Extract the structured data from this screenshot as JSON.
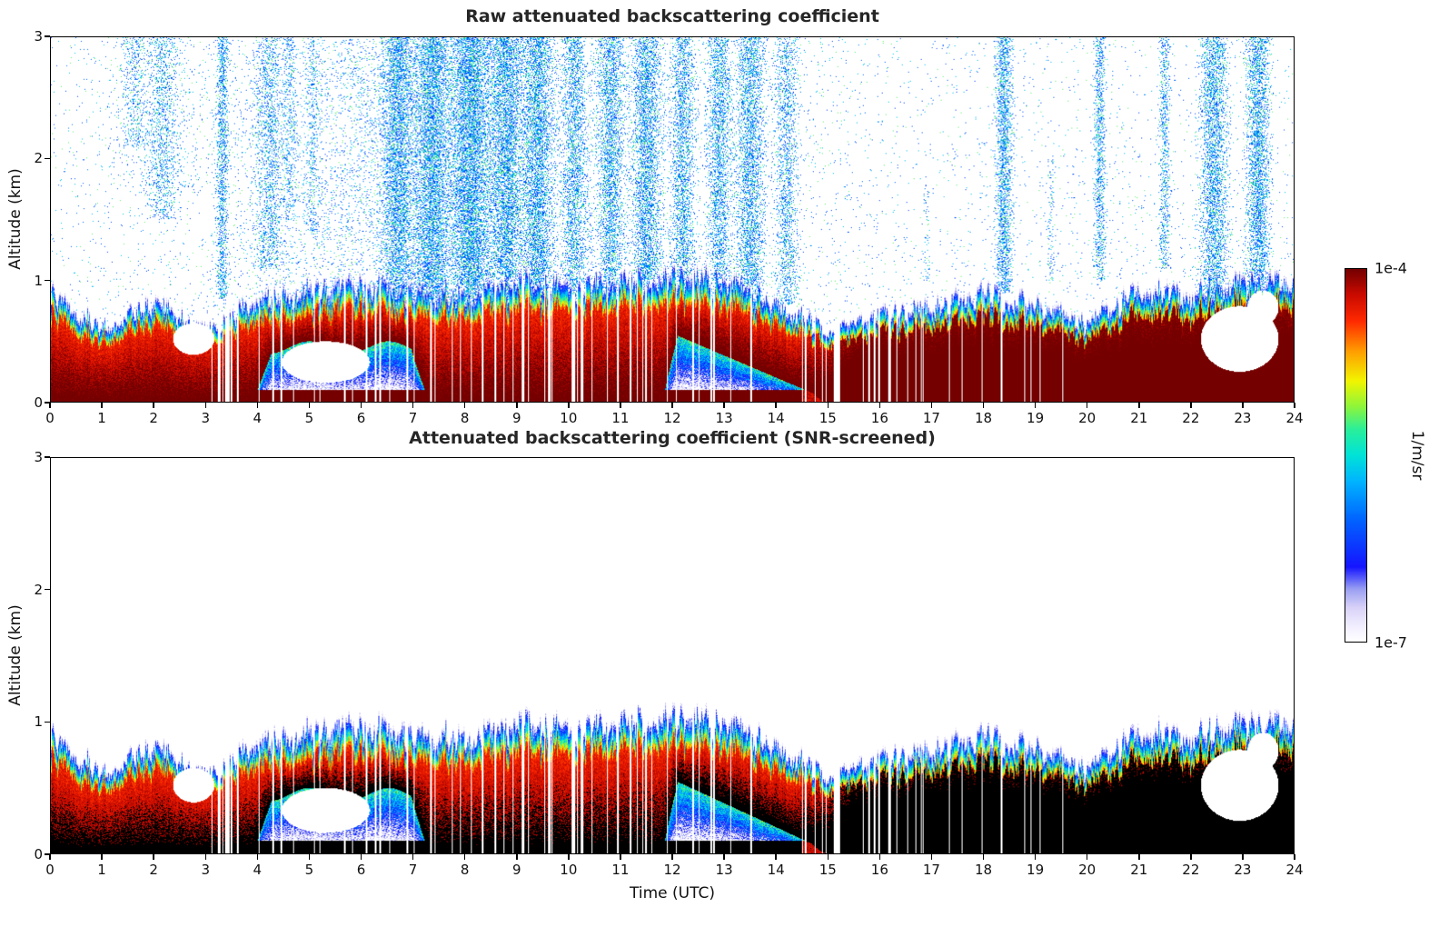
{
  "figure": {
    "xlabel": "Time (UTC)",
    "xticks": [
      "0",
      "1",
      "2",
      "3",
      "4",
      "5",
      "6",
      "7",
      "8",
      "9",
      "10",
      "11",
      "12",
      "13",
      "14",
      "15",
      "16",
      "17",
      "18",
      "19",
      "20",
      "21",
      "22",
      "23",
      "24"
    ],
    "panels": [
      {
        "title": "Raw attenuated backscattering coefficient",
        "ylabel": "Altitude (km)",
        "yticks": [
          "0",
          "1",
          "2",
          "3"
        ]
      },
      {
        "title": "Attenuated backscattering coefficient (SNR-screened)",
        "ylabel": "Altitude (km)",
        "yticks": [
          "0",
          "1",
          "2",
          "3"
        ]
      }
    ],
    "colorbar": {
      "max_label": "1e-4",
      "min_label": "1e-7",
      "unit": "1/m/sr"
    }
  },
  "chart_data": [
    {
      "type": "heatmap",
      "title": "Raw attenuated backscattering coefficient",
      "xlabel": "Time (UTC)",
      "ylabel": "Altitude (km)",
      "xlim": [
        0,
        24
      ],
      "ylim": [
        0,
        3
      ],
      "color_scale": {
        "type": "log",
        "min": 1e-07,
        "max": 0.0001,
        "unit": "1/m/sr"
      },
      "colormap_stops": [
        [
          0.0,
          "#ffffff"
        ],
        [
          0.04,
          "#f2efff"
        ],
        [
          0.09,
          "#d9d2f8"
        ],
        [
          0.14,
          "#9aa0f2"
        ],
        [
          0.2,
          "#1515ff"
        ],
        [
          0.33,
          "#0066ff"
        ],
        [
          0.43,
          "#00b4ff"
        ],
        [
          0.5,
          "#00e3d8"
        ],
        [
          0.57,
          "#2aef9a"
        ],
        [
          0.63,
          "#8cf53c"
        ],
        [
          0.7,
          "#f2f500"
        ],
        [
          0.78,
          "#ff9d00"
        ],
        [
          0.86,
          "#ff2a00"
        ],
        [
          0.93,
          "#cc0b00"
        ],
        [
          1.0,
          "#750000"
        ]
      ],
      "aerosol_layer_top_km": {
        "hours": [
          0,
          1,
          2,
          3,
          4,
          5,
          6,
          7,
          8,
          9,
          10,
          11,
          12,
          13,
          14,
          15,
          16,
          17,
          18,
          19,
          20,
          21,
          22,
          23,
          24
        ],
        "values": [
          0.9,
          0.62,
          0.82,
          0.58,
          0.88,
          0.93,
          0.97,
          0.92,
          0.92,
          1.0,
          0.95,
          1.02,
          1.06,
          1.0,
          0.82,
          0.62,
          0.72,
          0.78,
          0.92,
          0.82,
          0.65,
          0.92,
          0.92,
          1.0,
          0.95
        ]
      },
      "elevated_layer_interval_utc": [
        3.9,
        7.3
      ],
      "descending_layer_interval_utc": [
        11.8,
        15.0
      ],
      "surface_weakening_after_utc": 14.5,
      "cloud_gaps": [
        {
          "t": 5.3,
          "z": 0.33,
          "rt": 0.85,
          "rz": 0.17
        },
        {
          "t": 2.75,
          "z": 0.52,
          "rt": 0.4,
          "rz": 0.13
        },
        {
          "t": 22.95,
          "z": 0.52,
          "rt": 0.75,
          "rz": 0.27
        },
        {
          "t": 23.4,
          "z": 0.78,
          "rt": 0.3,
          "rz": 0.14
        }
      ],
      "noise": {
        "base": 0.012,
        "bloom_center_utc": 8.2,
        "bloom_sigma": 2.6,
        "bloom_peak": 0.1,
        "columns": [
          {
            "t": 1.6,
            "w": 0.25,
            "d": 0.18,
            "z0": 2.1,
            "z1": 3.0
          },
          {
            "t": 2.15,
            "w": 0.3,
            "d": 0.22,
            "z0": 1.5,
            "z1": 3.0
          },
          {
            "t": 3.3,
            "w": 0.12,
            "d": 0.45,
            "z0": 0.85,
            "z1": 3.0
          },
          {
            "t": 4.2,
            "w": 0.3,
            "d": 0.25,
            "z0": 1.1,
            "z1": 3.0
          },
          {
            "t": 4.6,
            "w": 0.15,
            "d": 0.2,
            "z0": 1.5,
            "z1": 3.0
          },
          {
            "t": 5.05,
            "w": 0.15,
            "d": 0.18,
            "z0": 1.4,
            "z1": 3.0
          },
          {
            "t": 6.7,
            "w": 0.35,
            "d": 0.45,
            "z0": 0.55,
            "z1": 3.0
          },
          {
            "t": 7.35,
            "w": 0.35,
            "d": 0.5,
            "z0": 0.5,
            "z1": 3.0
          },
          {
            "t": 8.1,
            "w": 0.45,
            "d": 0.5,
            "z0": 0.5,
            "z1": 3.0
          },
          {
            "t": 8.8,
            "w": 0.35,
            "d": 0.45,
            "z0": 0.6,
            "z1": 3.0
          },
          {
            "t": 9.4,
            "w": 0.3,
            "d": 0.45,
            "z0": 0.6,
            "z1": 3.0
          },
          {
            "t": 10.1,
            "w": 0.25,
            "d": 0.35,
            "z0": 0.8,
            "z1": 3.0
          },
          {
            "t": 10.8,
            "w": 0.25,
            "d": 0.4,
            "z0": 0.6,
            "z1": 3.0
          },
          {
            "t": 11.5,
            "w": 0.3,
            "d": 0.45,
            "z0": 0.5,
            "z1": 3.0
          },
          {
            "t": 12.2,
            "w": 0.25,
            "d": 0.4,
            "z0": 0.55,
            "z1": 3.0
          },
          {
            "t": 12.9,
            "w": 0.25,
            "d": 0.4,
            "z0": 0.55,
            "z1": 3.0
          },
          {
            "t": 13.5,
            "w": 0.3,
            "d": 0.42,
            "z0": 0.55,
            "z1": 3.0
          },
          {
            "t": 14.2,
            "w": 0.25,
            "d": 0.3,
            "z0": 0.8,
            "z1": 3.0
          },
          {
            "t": 16.9,
            "w": 0.08,
            "d": 0.1,
            "z0": 1.0,
            "z1": 1.8
          },
          {
            "t": 18.4,
            "w": 0.18,
            "d": 0.5,
            "z0": 0.9,
            "z1": 3.0
          },
          {
            "t": 19.3,
            "w": 0.08,
            "d": 0.15,
            "z0": 1.0,
            "z1": 2.0
          },
          {
            "t": 20.25,
            "w": 0.12,
            "d": 0.4,
            "z0": 1.0,
            "z1": 3.0
          },
          {
            "t": 21.5,
            "w": 0.12,
            "d": 0.3,
            "z0": 1.1,
            "z1": 3.0
          },
          {
            "t": 22.45,
            "w": 0.3,
            "d": 0.45,
            "z0": 0.8,
            "z1": 3.0
          },
          {
            "t": 23.3,
            "w": 0.25,
            "d": 0.5,
            "z0": 0.8,
            "z1": 3.0
          }
        ]
      }
    },
    {
      "type": "heatmap",
      "title": "Attenuated backscattering coefficient (SNR-screened)",
      "xlabel": "Time (UTC)",
      "ylabel": "Altitude (km)",
      "xlim": [
        0,
        24
      ],
      "ylim": [
        0,
        3
      ],
      "color_scale": {
        "type": "log",
        "min": 1e-07,
        "max": 0.0001,
        "unit": "1/m/sr"
      },
      "screened": true,
      "noise_above_layer": "removed",
      "saturation_black_above": 8e-05,
      "shares_field_with_panel": 0
    }
  ]
}
